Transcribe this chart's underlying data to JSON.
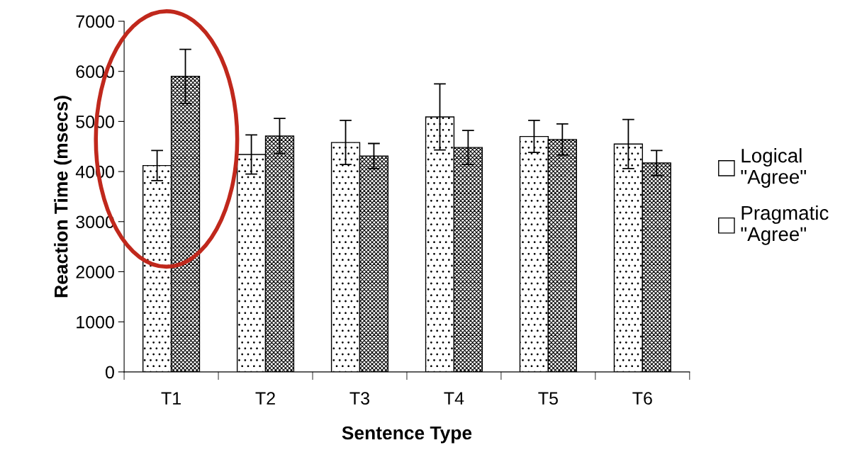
{
  "chart_data": {
    "type": "bar",
    "xlabel": "Sentence Type",
    "ylabel": "Reaction Time (msecs)",
    "categories": [
      "T1",
      "T2",
      "T3",
      "T4",
      "T5",
      "T6"
    ],
    "series": [
      {
        "name": "Logical\n\"Agree\"",
        "color": "#ffffff",
        "values": [
          4120,
          4340,
          4580,
          5090,
          4700,
          4550
        ],
        "errors": [
          300,
          390,
          440,
          660,
          320,
          490
        ]
      },
      {
        "name": "Pragmatic\n\"Agree\"",
        "color": "#ffffff",
        "values": [
          5900,
          4710,
          4310,
          4480,
          4640,
          4170
        ],
        "errors": [
          540,
          350,
          250,
          340,
          310,
          250
        ]
      }
    ],
    "ylim": [
      0,
      7000
    ],
    "yticks": [
      0,
      1000,
      2000,
      3000,
      4000,
      5000,
      6000,
      7000
    ],
    "grid": false,
    "legend": "right"
  }
}
